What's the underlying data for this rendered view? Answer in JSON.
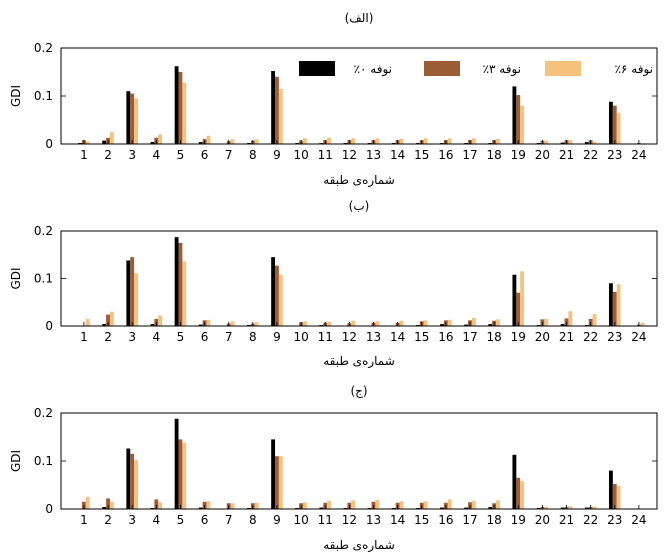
{
  "chart_data": [
    {
      "type": "bar",
      "title": "(الف)",
      "xlabel": "شماره‌ی طبقه",
      "ylabel": "GDI",
      "ylim": [
        0,
        0.2
      ],
      "yticks": [
        "0",
        "0.1",
        "0.2"
      ],
      "categories": [
        "1",
        "2",
        "3",
        "4",
        "5",
        "6",
        "7",
        "8",
        "9",
        "10",
        "11",
        "12",
        "13",
        "14",
        "15",
        "16",
        "17",
        "18",
        "19",
        "20",
        "21",
        "22",
        "23",
        "24"
      ],
      "legend": {
        "placement": "top",
        "entries": [
          "٪۰ نوفه",
          "٪۳ نوفه",
          "٪۶ نوفه"
        ]
      },
      "series": [
        {
          "name": "٪۰ نوفه",
          "color": "#000000",
          "values": [
            0.002,
            0.007,
            0.11,
            0.004,
            0.162,
            0.004,
            0.001,
            0.002,
            0.152,
            0.002,
            0.002,
            0.002,
            0.002,
            0.002,
            0.002,
            0.002,
            0.002,
            0.002,
            0.12,
            0.002,
            0.003,
            0.004,
            0.088,
            0.001
          ]
        },
        {
          "name": "٪۳ نوفه",
          "color": "#9c5d36",
          "values": [
            0.008,
            0.013,
            0.105,
            0.013,
            0.15,
            0.01,
            0.006,
            0.007,
            0.14,
            0.007,
            0.008,
            0.008,
            0.008,
            0.008,
            0.008,
            0.008,
            0.008,
            0.008,
            0.102,
            0.007,
            0.008,
            0.008,
            0.08,
            0.002
          ]
        },
        {
          "name": "٪۶ نوفه",
          "color": "#f5c27e",
          "values": [
            0.005,
            0.025,
            0.095,
            0.02,
            0.128,
            0.017,
            0.01,
            0.01,
            0.115,
            0.012,
            0.013,
            0.012,
            0.012,
            0.011,
            0.012,
            0.012,
            0.012,
            0.011,
            0.08,
            0.007,
            0.008,
            0.005,
            0.065,
            0.001
          ]
        }
      ]
    },
    {
      "type": "bar",
      "title": "(ب)",
      "xlabel": "شماره‌ی طبقه",
      "ylabel": "GDI",
      "ylim": [
        0,
        0.2
      ],
      "yticks": [
        "0",
        "0.1",
        "0.2"
      ],
      "categories": [
        "1",
        "2",
        "3",
        "4",
        "5",
        "6",
        "7",
        "8",
        "9",
        "10",
        "11",
        "12",
        "13",
        "14",
        "15",
        "16",
        "17",
        "18",
        "19",
        "20",
        "21",
        "22",
        "23",
        "24"
      ],
      "series": [
        {
          "name": "٪۰ نوفه",
          "color": "#000000",
          "values": [
            0.001,
            0.004,
            0.138,
            0.004,
            0.187,
            0.003,
            0.001,
            0.002,
            0.145,
            0.001,
            0.002,
            0.001,
            0.001,
            0.001,
            0.002,
            0.004,
            0.003,
            0.004,
            0.108,
            0.002,
            0.004,
            0.002,
            0.09,
            0.001
          ]
        },
        {
          "name": "٪۳ نوفه",
          "color": "#9c5d36",
          "values": [
            0.001,
            0.024,
            0.145,
            0.015,
            0.175,
            0.012,
            0.005,
            0.005,
            0.127,
            0.008,
            0.007,
            0.006,
            0.007,
            0.007,
            0.01,
            0.012,
            0.012,
            0.011,
            0.07,
            0.014,
            0.016,
            0.015,
            0.072,
            0.003
          ]
        },
        {
          "name": "٪۶ نوفه",
          "color": "#f5c27e",
          "values": [
            0.015,
            0.03,
            0.111,
            0.022,
            0.136,
            0.013,
            0.01,
            0.008,
            0.108,
            0.01,
            0.009,
            0.011,
            0.01,
            0.011,
            0.012,
            0.013,
            0.017,
            0.014,
            0.115,
            0.015,
            0.031,
            0.025,
            0.088,
            0.007
          ]
        }
      ]
    },
    {
      "type": "bar",
      "title": "(ج)",
      "xlabel": "شماره‌ی طبقه",
      "ylabel": "GDI",
      "ylim": [
        0,
        0.2
      ],
      "yticks": [
        "0",
        "0.1",
        "0.2"
      ],
      "categories": [
        "1",
        "2",
        "3",
        "4",
        "5",
        "6",
        "7",
        "8",
        "9",
        "10",
        "11",
        "12",
        "13",
        "14",
        "15",
        "16",
        "17",
        "18",
        "19",
        "20",
        "21",
        "22",
        "23",
        "24"
      ],
      "series": [
        {
          "name": "٪۰ نوفه",
          "color": "#000000",
          "values": [
            0.001,
            0.004,
            0.126,
            0.002,
            0.188,
            0.003,
            0.001,
            0.002,
            0.145,
            0.002,
            0.003,
            0.002,
            0.002,
            0.002,
            0.002,
            0.003,
            0.003,
            0.004,
            0.113,
            0.002,
            0.003,
            0.003,
            0.08,
            0.001
          ]
        },
        {
          "name": "٪۳ نوفه",
          "color": "#9c5d36",
          "values": [
            0.015,
            0.022,
            0.115,
            0.02,
            0.145,
            0.015,
            0.012,
            0.012,
            0.11,
            0.012,
            0.013,
            0.013,
            0.015,
            0.013,
            0.013,
            0.013,
            0.014,
            0.012,
            0.065,
            0.004,
            0.004,
            0.004,
            0.052,
            0.001
          ]
        },
        {
          "name": "٪۶ نوفه",
          "color": "#f5c27e",
          "values": [
            0.025,
            0.015,
            0.102,
            0.014,
            0.138,
            0.016,
            0.012,
            0.013,
            0.11,
            0.014,
            0.017,
            0.018,
            0.019,
            0.016,
            0.016,
            0.02,
            0.017,
            0.018,
            0.058,
            0.005,
            0.006,
            0.005,
            0.048,
            0.001
          ]
        }
      ]
    }
  ]
}
